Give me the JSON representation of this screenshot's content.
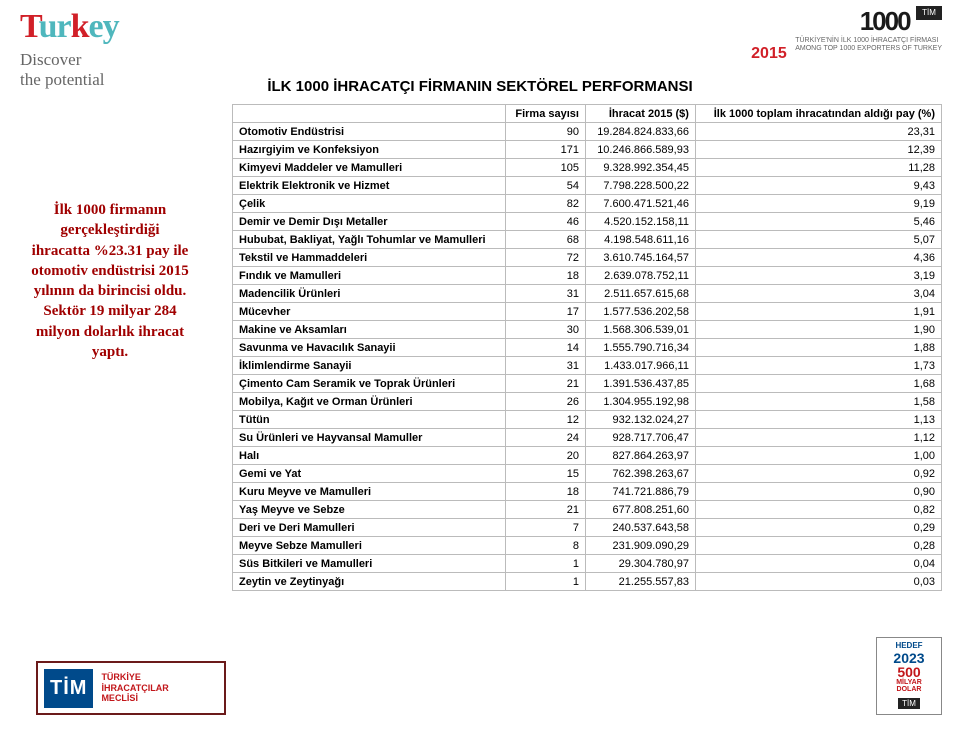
{
  "brand_tl": {
    "logo_main": "Turkey",
    "tagline_l1": "Discover",
    "tagline_l2": "the potential"
  },
  "brand_tr": {
    "year": "2015",
    "num_shape": "1000",
    "tag_l1": "TÜRKİYE'NİN İLK 1000 İHRACATÇI FİRMASI",
    "tag_l2": "AMONG TOP 1000 EXPORTERS OF TURKEY",
    "tim": "TİM"
  },
  "title": "İLK 1000 İHRACATÇI FİRMANIN SEKTÖREL PERFORMANSI",
  "caption": "İlk 1000 firmanın gerçekleştirdiği ihracatta %23.31 pay ile otomotiv endüstrisi 2015 yılının da birincisi oldu. Sektör 19 milyar 284 milyon dolarlık ihracat yaptı.",
  "table": {
    "columns": [
      "",
      "Firma sayısı",
      "İhracat 2015 ($)",
      "İlk 1000 toplam ihracatından aldığı pay (%)"
    ],
    "col_align": [
      "left",
      "right",
      "right",
      "right"
    ],
    "rows": [
      [
        "Otomotiv Endüstrisi",
        "90",
        "19.284.824.833,66",
        "23,31"
      ],
      [
        "Hazırgiyim ve Konfeksiyon",
        "171",
        "10.246.866.589,93",
        "12,39"
      ],
      [
        "Kimyevi Maddeler ve Mamulleri",
        "105",
        "9.328.992.354,45",
        "11,28"
      ],
      [
        "Elektrik Elektronik ve Hizmet",
        "54",
        "7.798.228.500,22",
        "9,43"
      ],
      [
        "Çelik",
        "82",
        "7.600.471.521,46",
        "9,19"
      ],
      [
        "Demir ve Demir Dışı Metaller",
        "46",
        "4.520.152.158,11",
        "5,46"
      ],
      [
        "Hububat, Bakliyat, Yağlı Tohumlar ve Mamulleri",
        "68",
        "4.198.548.611,16",
        "5,07"
      ],
      [
        "Tekstil ve Hammaddeleri",
        "72",
        "3.610.745.164,57",
        "4,36"
      ],
      [
        "Fındık ve Mamulleri",
        "18",
        "2.639.078.752,11",
        "3,19"
      ],
      [
        "Madencilik Ürünleri",
        "31",
        "2.511.657.615,68",
        "3,04"
      ],
      [
        "Mücevher",
        "17",
        "1.577.536.202,58",
        "1,91"
      ],
      [
        "Makine ve Aksamları",
        "30",
        "1.568.306.539,01",
        "1,90"
      ],
      [
        "Savunma ve Havacılık Sanayii",
        "14",
        "1.555.790.716,34",
        "1,88"
      ],
      [
        "İklimlendirme Sanayii",
        "31",
        "1.433.017.966,11",
        "1,73"
      ],
      [
        "Çimento Cam Seramik ve Toprak Ürünleri",
        "21",
        "1.391.536.437,85",
        "1,68"
      ],
      [
        "Mobilya, Kağıt ve Orman Ürünleri",
        "26",
        "1.304.955.192,98",
        "1,58"
      ],
      [
        "Tütün",
        "12",
        "932.132.024,27",
        "1,13"
      ],
      [
        "Su Ürünleri ve Hayvansal Mamuller",
        "24",
        "928.717.706,47",
        "1,12"
      ],
      [
        "Halı",
        "20",
        "827.864.263,97",
        "1,00"
      ],
      [
        "Gemi ve Yat",
        "15",
        "762.398.263,67",
        "0,92"
      ],
      [
        "Kuru Meyve ve Mamulleri",
        "18",
        "741.721.886,79",
        "0,90"
      ],
      [
        "Yaş Meyve ve Sebze",
        "21",
        "677.808.251,60",
        "0,82"
      ],
      [
        "Deri ve Deri Mamulleri",
        "7",
        "240.537.643,58",
        "0,29"
      ],
      [
        "Meyve Sebze Mamulleri",
        "8",
        "231.909.090,29",
        "0,28"
      ],
      [
        "Süs Bitkileri ve Mamulleri",
        "1",
        "29.304.780,97",
        "0,04"
      ],
      [
        "Zeytin ve Zeytinyağı",
        "1",
        "21.255.557,83",
        "0,03"
      ]
    ],
    "border_color": "#bbbbbb",
    "header_bg": "#ffffff",
    "fontsize": 11
  },
  "tim_bl": {
    "box": "TİM",
    "txt_l1": "TÜRKİYE",
    "txt_l2": "İHRACATÇILAR",
    "txt_l3": "MECLİSİ"
  },
  "hedef": {
    "l1": "HEDEF",
    "l2": "2023",
    "l3": "500",
    "l4a": "MİLYAR",
    "l4b": "DOLAR",
    "tim": "TİM"
  },
  "colors": {
    "brand_teal": "#4fb7bd",
    "brand_red": "#d12028",
    "caption_red": "#a00000",
    "tim_blue": "#004a8b",
    "tim_red": "#c2161a"
  }
}
